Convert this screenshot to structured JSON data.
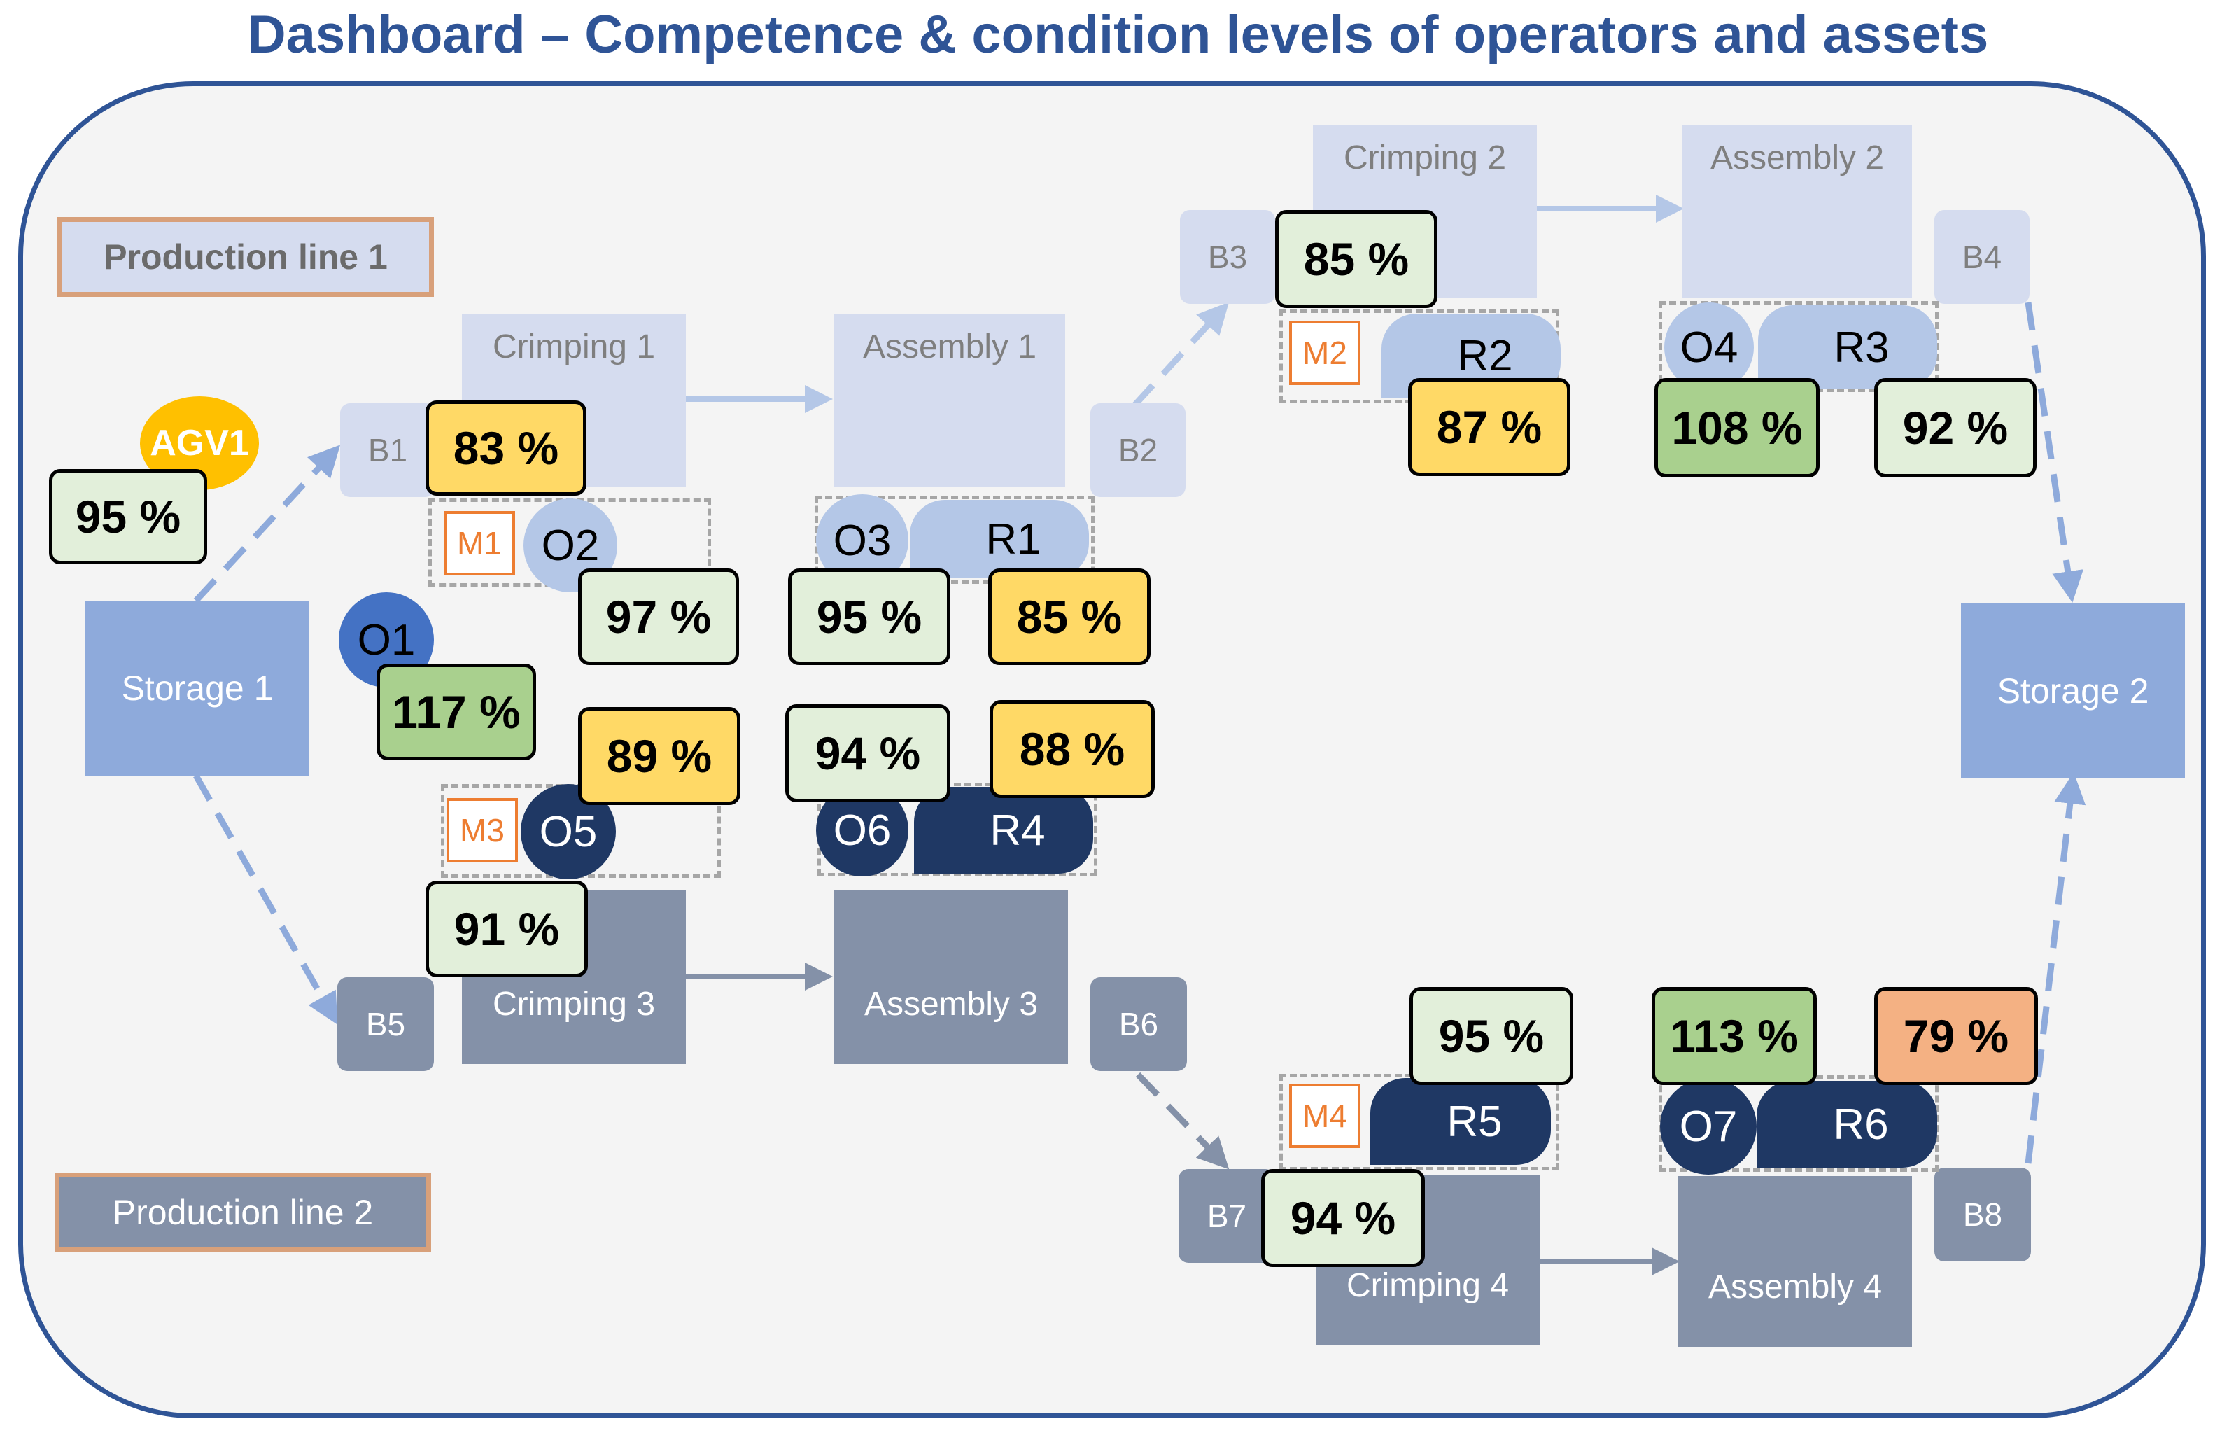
{
  "title": "Dashboard – Competence & condition levels of operators and assets",
  "production_lines": {
    "line1_label": "Production line 1",
    "line2_label": "Production line 2"
  },
  "storages": {
    "s1": "Storage 1",
    "s2": "Storage 2"
  },
  "stations": {
    "crimping1": "Crimping 1",
    "assembly1": "Assembly 1",
    "crimping2": "Crimping 2",
    "assembly2": "Assembly 2",
    "crimping3": "Crimping 3",
    "assembly3": "Assembly 3",
    "crimping4": "Crimping 4",
    "assembly4": "Assembly 4"
  },
  "buffers": {
    "b1": "B1",
    "b2": "B2",
    "b3": "B3",
    "b4": "B4",
    "b5": "B5",
    "b6": "B6",
    "b7": "B7",
    "b8": "B8"
  },
  "machines": {
    "m1": "M1",
    "m2": "M2",
    "m3": "M3",
    "m4": "M4"
  },
  "operators": {
    "o1": "O1",
    "o2": "O2",
    "o3": "O3",
    "o4": "O4",
    "o5": "O5",
    "o6": "O6",
    "o7": "O7"
  },
  "robots": {
    "r1": "R1",
    "r2": "R2",
    "r3": "R3",
    "r4": "R4",
    "r5": "R5",
    "r6": "R6"
  },
  "agv": {
    "label": "AGV1",
    "level": "95 %"
  },
  "levels": {
    "crimping1": "83 %",
    "o2": "97 %",
    "o1": "117 %",
    "m3": "89 %",
    "o5": "91 %",
    "o3": "95 %",
    "r1": "85 %",
    "o6": "94 %",
    "r4": "88 %",
    "crimping2": "85 %",
    "r2": "87 %",
    "o4": "108 %",
    "r3": "92 %",
    "r5": "95 %",
    "o7": "113 %",
    "r6": "79 %",
    "crimping4": "94 %"
  },
  "colors": {
    "title": "#2f5496",
    "light_green": "#e2efda",
    "green": "#a9d08e",
    "yellow": "#ffd966",
    "orange": "#f4b183",
    "line1": "#d5dcef",
    "line2": "#8491a8",
    "dark_navy": "#1f3864"
  }
}
